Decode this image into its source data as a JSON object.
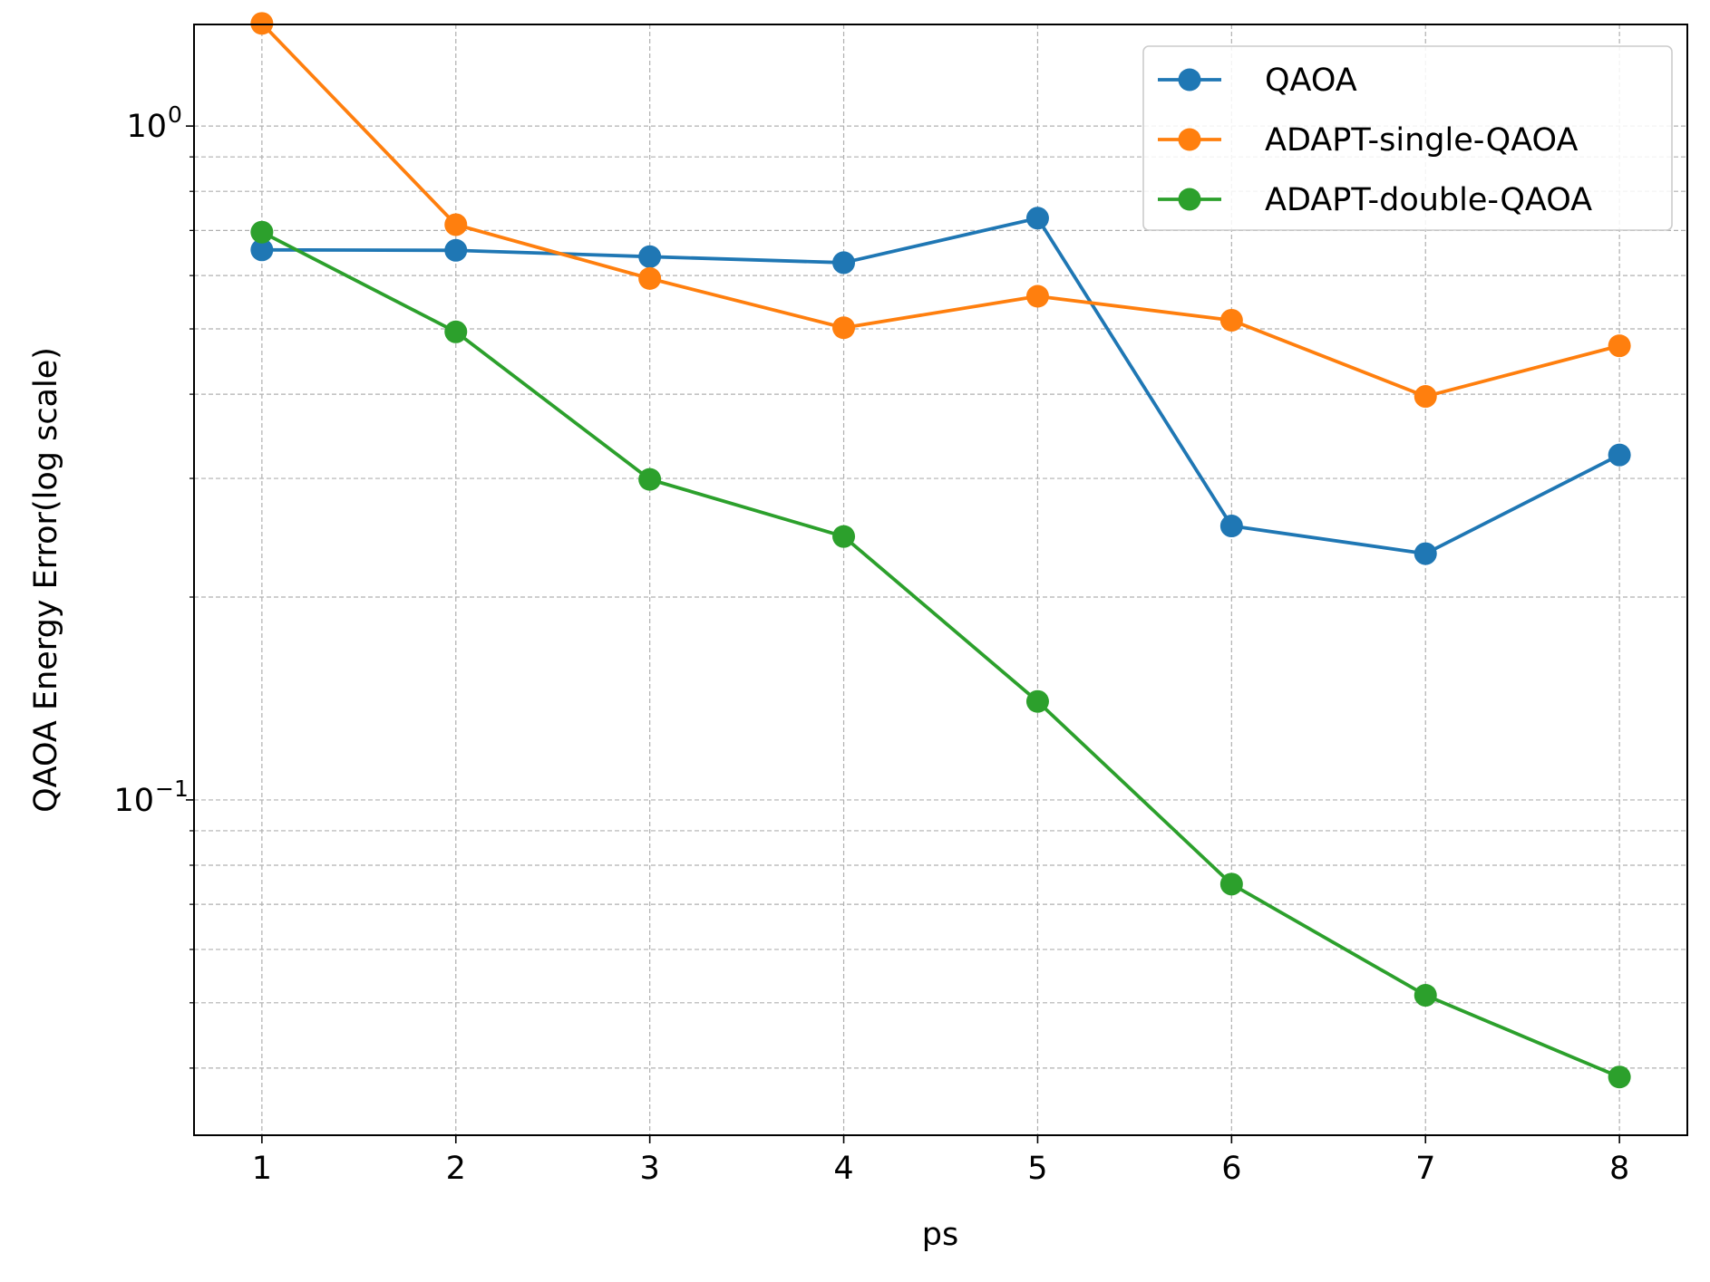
{
  "chart_data": {
    "type": "line",
    "title": "",
    "xlabel": "ps",
    "ylabel": "QAOA Energy Error(log scale)",
    "yscale": "log",
    "x": [
      1,
      2,
      3,
      4,
      5,
      6,
      7,
      8
    ],
    "xlim": [
      0.65,
      8.35
    ],
    "ylim": [
      0.0318,
      1.415
    ],
    "x_ticks": [
      "1",
      "2",
      "3",
      "4",
      "5",
      "6",
      "7",
      "8"
    ],
    "y_ticks": [
      {
        "value": 1.0,
        "base": "10",
        "exp": "0"
      },
      {
        "value": 0.1,
        "base": "10",
        "exp": "−1"
      }
    ],
    "grid": true,
    "legend_position": "top-right",
    "series": [
      {
        "name": "QAOA",
        "color": "#1f77b4",
        "values": [
          0.655,
          0.654,
          0.64,
          0.627,
          0.73,
          0.255,
          0.232,
          0.325
        ]
      },
      {
        "name": "ADAPT-single-QAOA",
        "color": "#ff7f0e",
        "values": [
          1.42,
          0.714,
          0.594,
          0.502,
          0.559,
          0.515,
          0.397,
          0.472
        ]
      },
      {
        "name": "ADAPT-double-QAOA",
        "color": "#2ca02c",
        "values": [
          0.696,
          0.495,
          0.299,
          0.246,
          0.14,
          0.075,
          0.0513,
          0.0388
        ]
      }
    ]
  }
}
